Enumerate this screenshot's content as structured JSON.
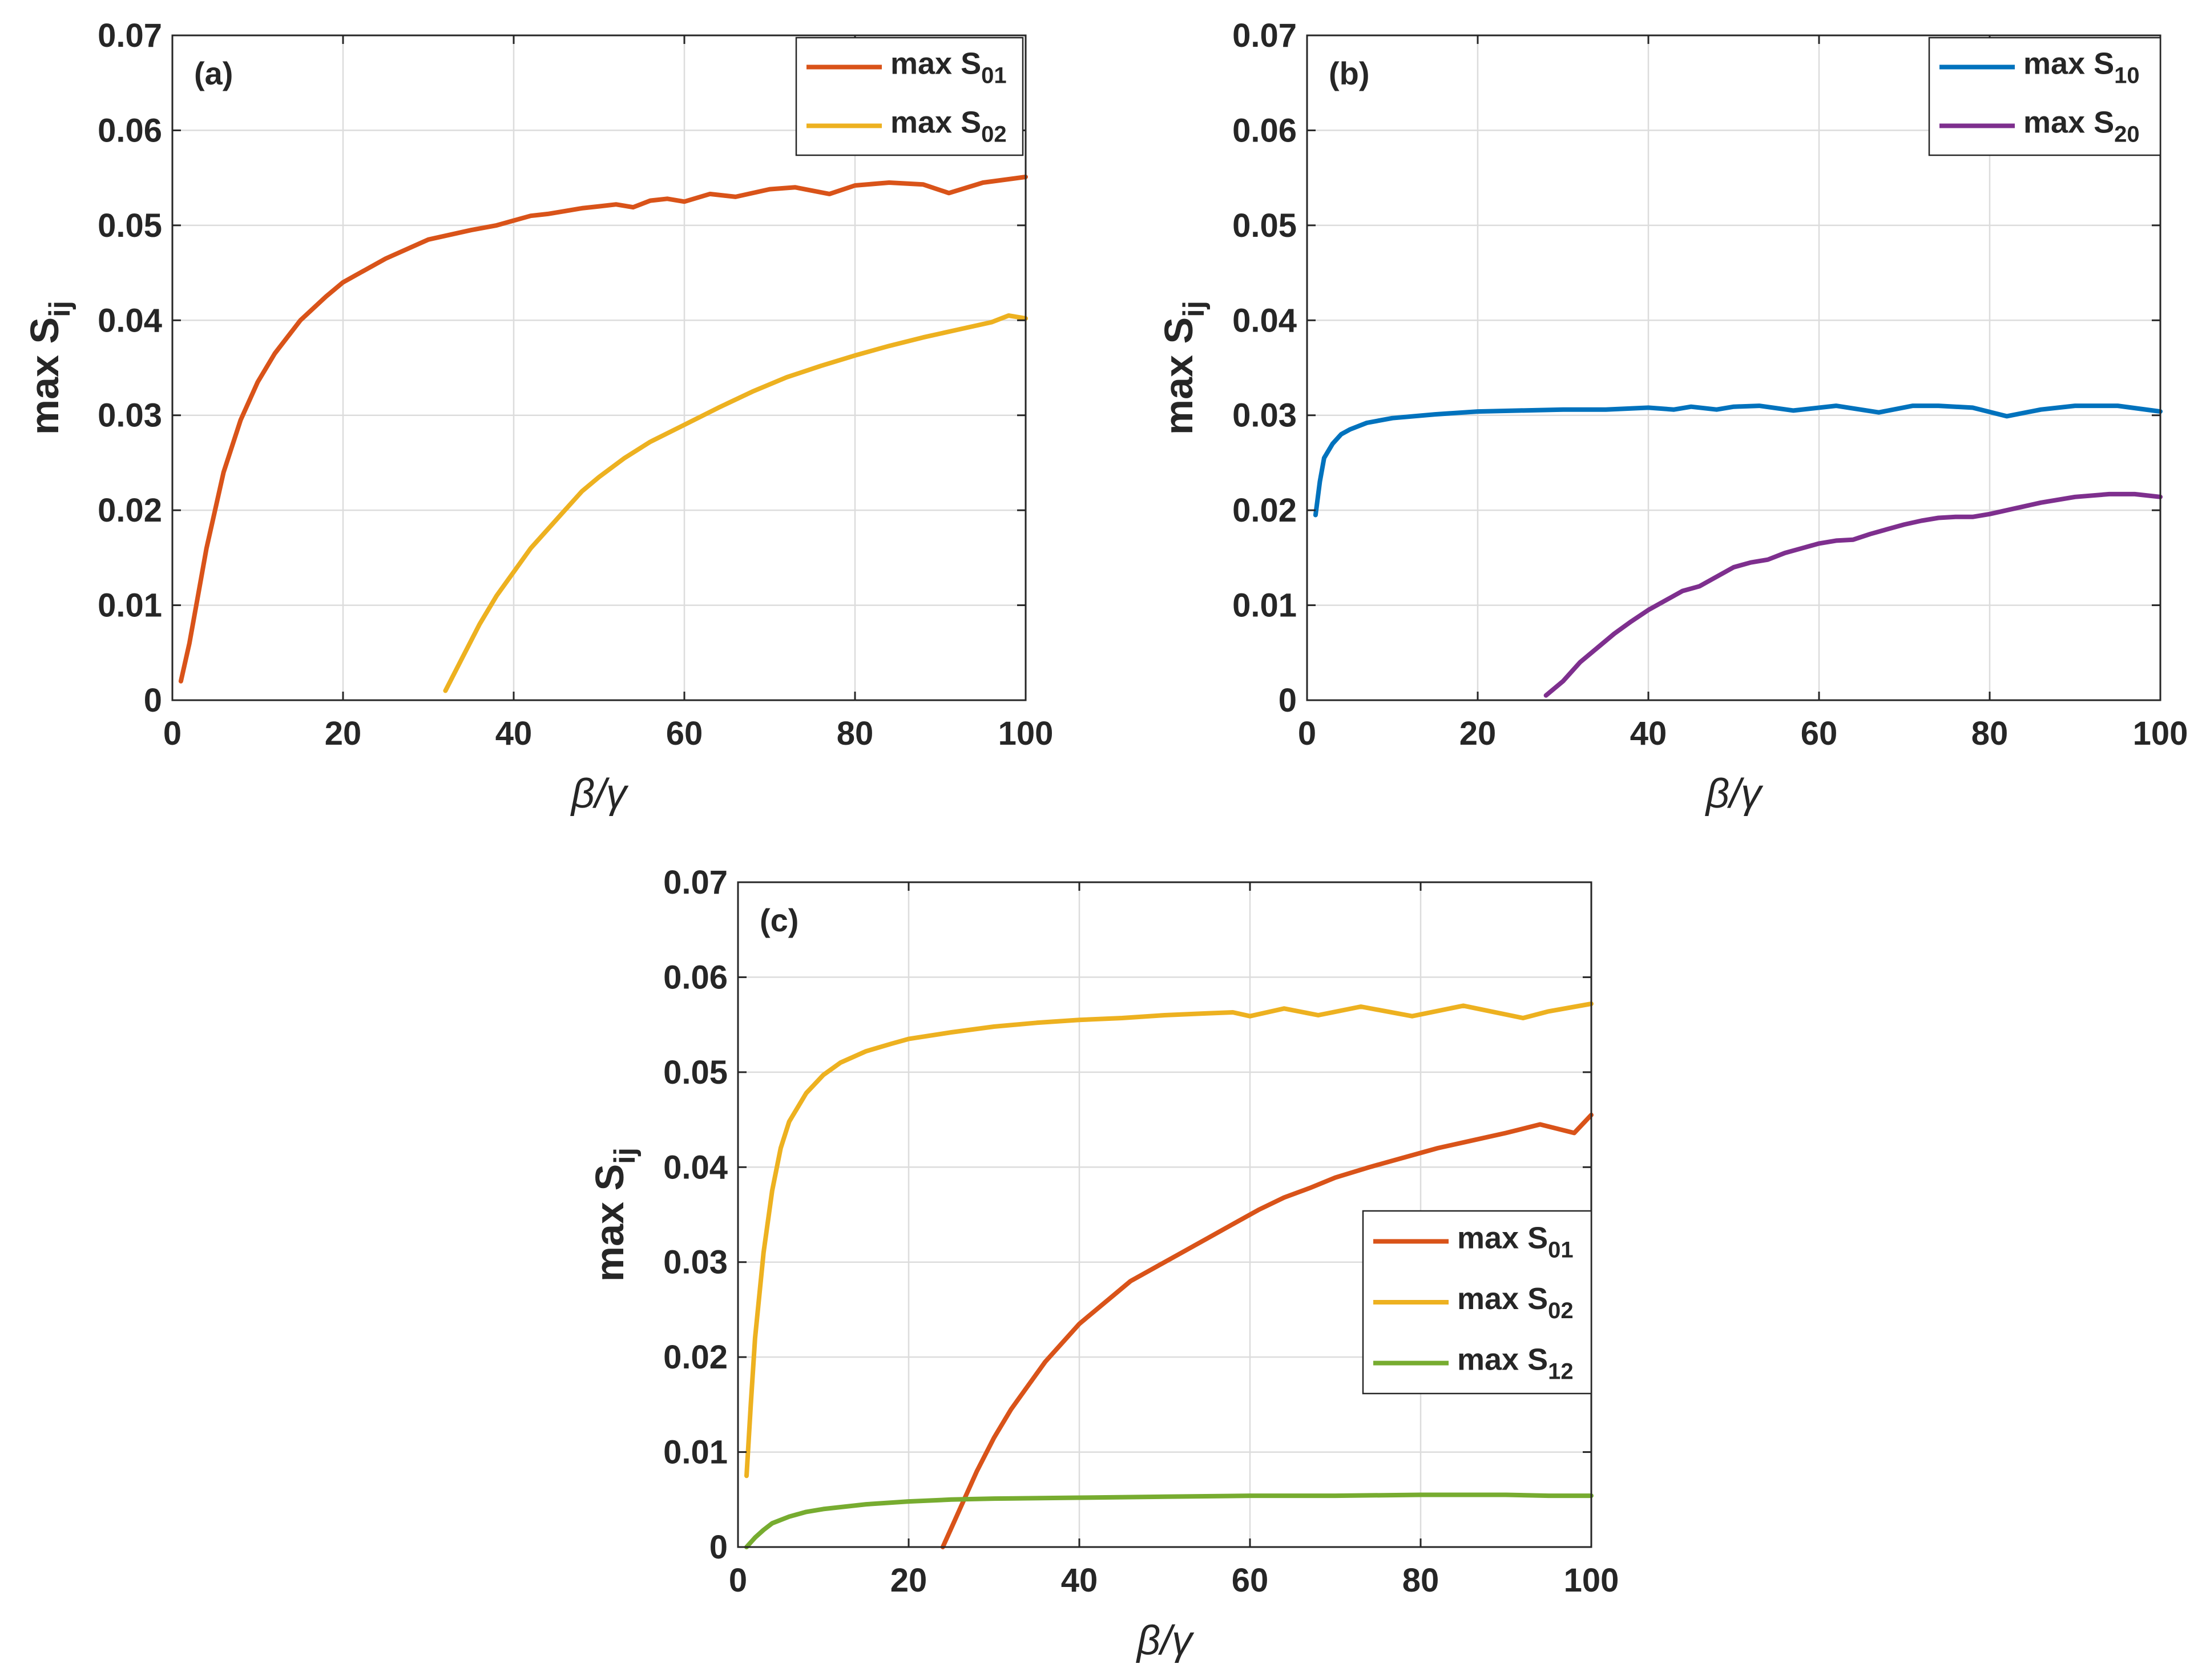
{
  "chart_data": [
    {
      "type": "line",
      "panel_label": "(a)",
      "xlabel": "β/γ",
      "ylabel_main": "max S",
      "ylabel_sub": "ij",
      "xlim": [
        0,
        100
      ],
      "ylim": [
        0,
        0.07
      ],
      "x_ticks": [
        0,
        20,
        40,
        60,
        80,
        100
      ],
      "x_tick_labels": [
        "0",
        "20",
        "40",
        "60",
        "80",
        "100"
      ],
      "y_ticks": [
        0,
        0.01,
        0.02,
        0.03,
        0.04,
        0.05,
        0.06,
        0.07
      ],
      "y_tick_labels": [
        "0",
        "0.01",
        "0.02",
        "0.03",
        "0.04",
        "0.05",
        "0.06",
        "0.07"
      ],
      "grid": true,
      "legend_position": "top-right",
      "series": [
        {
          "name": "max S01",
          "label_main": "max S",
          "label_sub": "01",
          "color": "#D95319",
          "x": [
            1,
            2,
            3,
            4,
            5,
            6,
            8,
            10,
            12,
            15,
            18,
            20,
            25,
            30,
            35,
            38,
            40,
            42,
            44,
            46,
            48,
            50,
            52,
            54,
            56,
            58,
            60,
            63,
            66,
            70,
            73,
            77,
            80,
            84,
            88,
            91,
            95,
            100
          ],
          "y": [
            0.002,
            0.006,
            0.011,
            0.016,
            0.02,
            0.024,
            0.0295,
            0.0335,
            0.0365,
            0.04,
            0.0425,
            0.044,
            0.0465,
            0.0485,
            0.0495,
            0.05,
            0.0505,
            0.051,
            0.0512,
            0.0515,
            0.0518,
            0.052,
            0.0522,
            0.0519,
            0.0526,
            0.0528,
            0.0525,
            0.0533,
            0.053,
            0.0538,
            0.054,
            0.0533,
            0.0542,
            0.0545,
            0.0543,
            0.0534,
            0.0545,
            0.0551
          ]
        },
        {
          "name": "max S02",
          "label_main": "max S",
          "label_sub": "02",
          "color": "#EDB120",
          "x": [
            32,
            34,
            36,
            38,
            40,
            42,
            44,
            46,
            48,
            50,
            53,
            56,
            60,
            64,
            68,
            72,
            76,
            80,
            84,
            88,
            92,
            96,
            98,
            100
          ],
          "y": [
            0.001,
            0.0045,
            0.008,
            0.011,
            0.0135,
            0.016,
            0.018,
            0.02,
            0.022,
            0.0235,
            0.0255,
            0.0272,
            0.029,
            0.0308,
            0.0325,
            0.034,
            0.0352,
            0.0363,
            0.0373,
            0.0382,
            0.039,
            0.0398,
            0.0405,
            0.0402
          ]
        }
      ]
    },
    {
      "type": "line",
      "panel_label": "(b)",
      "xlabel": "β/γ",
      "ylabel_main": "max S",
      "ylabel_sub": "ij",
      "xlim": [
        0,
        100
      ],
      "ylim": [
        0,
        0.07
      ],
      "x_ticks": [
        0,
        20,
        40,
        60,
        80,
        100
      ],
      "x_tick_labels": [
        "0",
        "20",
        "40",
        "60",
        "80",
        "100"
      ],
      "y_ticks": [
        0,
        0.01,
        0.02,
        0.03,
        0.04,
        0.05,
        0.06,
        0.07
      ],
      "y_tick_labels": [
        "0",
        "0.01",
        "0.02",
        "0.03",
        "0.04",
        "0.05",
        "0.06",
        "0.07"
      ],
      "grid": true,
      "legend_position": "top-right",
      "series": [
        {
          "name": "max S10",
          "label_main": "max S",
          "label_sub": "10",
          "color": "#0072BD",
          "x": [
            1,
            1.5,
            2,
            3,
            4,
            5,
            7,
            10,
            15,
            20,
            25,
            30,
            35,
            40,
            43,
            45,
            48,
            50,
            53,
            57,
            62,
            67,
            71,
            74,
            78,
            82,
            86,
            90,
            95,
            100
          ],
          "y": [
            0.0195,
            0.023,
            0.0255,
            0.027,
            0.028,
            0.0285,
            0.0292,
            0.0297,
            0.0301,
            0.0304,
            0.0305,
            0.0306,
            0.0306,
            0.0308,
            0.0306,
            0.0309,
            0.0306,
            0.0309,
            0.031,
            0.0305,
            0.031,
            0.0303,
            0.031,
            0.031,
            0.0308,
            0.0299,
            0.0306,
            0.031,
            0.031,
            0.0304
          ]
        },
        {
          "name": "max S20",
          "label_main": "max S",
          "label_sub": "20",
          "color": "#7E2F8E",
          "x": [
            28,
            30,
            32,
            34,
            36,
            38,
            40,
            42,
            44,
            46,
            48,
            50,
            52,
            54,
            56,
            58,
            60,
            62,
            64,
            66,
            68,
            70,
            72,
            74,
            76,
            78,
            80,
            83,
            86,
            90,
            94,
            97,
            100
          ],
          "y": [
            0.0005,
            0.002,
            0.004,
            0.0055,
            0.007,
            0.0083,
            0.0095,
            0.0105,
            0.0115,
            0.012,
            0.013,
            0.014,
            0.0145,
            0.0148,
            0.0155,
            0.016,
            0.0165,
            0.0168,
            0.0169,
            0.0175,
            0.018,
            0.0185,
            0.0189,
            0.0192,
            0.0193,
            0.0193,
            0.0196,
            0.0202,
            0.0208,
            0.0214,
            0.0217,
            0.0217,
            0.0214
          ]
        }
      ]
    },
    {
      "type": "line",
      "panel_label": "(c)",
      "xlabel": "β/γ",
      "ylabel_main": "max S",
      "ylabel_sub": "ij",
      "xlim": [
        0,
        100
      ],
      "ylim": [
        0,
        0.07
      ],
      "x_ticks": [
        0,
        20,
        40,
        60,
        80,
        100
      ],
      "x_tick_labels": [
        "0",
        "20",
        "40",
        "60",
        "80",
        "100"
      ],
      "y_ticks": [
        0,
        0.01,
        0.02,
        0.03,
        0.04,
        0.05,
        0.06,
        0.07
      ],
      "y_tick_labels": [
        "0",
        "0.01",
        "0.02",
        "0.03",
        "0.04",
        "0.05",
        "0.06",
        "0.07"
      ],
      "grid": true,
      "legend_position": "right",
      "series": [
        {
          "name": "max S01",
          "label_main": "max S",
          "label_sub": "01",
          "color": "#D95319",
          "x": [
            24,
            25,
            26,
            28,
            30,
            32,
            34,
            36,
            38,
            40,
            42,
            44,
            46,
            48,
            50,
            52,
            55,
            58,
            61,
            64,
            67,
            70,
            74,
            78,
            82,
            86,
            90,
            94,
            98,
            100
          ],
          "y": [
            0.0,
            0.002,
            0.004,
            0.008,
            0.0115,
            0.0145,
            0.017,
            0.0195,
            0.0215,
            0.0235,
            0.025,
            0.0265,
            0.028,
            0.029,
            0.03,
            0.031,
            0.0325,
            0.034,
            0.0355,
            0.0368,
            0.0378,
            0.0389,
            0.04,
            0.041,
            0.042,
            0.0428,
            0.0436,
            0.0445,
            0.0436,
            0.0455
          ]
        },
        {
          "name": "max S02",
          "label_main": "max S",
          "label_sub": "02",
          "color": "#EDB120",
          "x": [
            1,
            1.5,
            2,
            3,
            4,
            5,
            6,
            8,
            10,
            12,
            15,
            18,
            20,
            25,
            30,
            35,
            40,
            45,
            50,
            55,
            58,
            60,
            64,
            68,
            73,
            79,
            85,
            92,
            95,
            100
          ],
          "y": [
            0.0075,
            0.015,
            0.022,
            0.031,
            0.0375,
            0.042,
            0.0448,
            0.0478,
            0.0497,
            0.051,
            0.0522,
            0.053,
            0.0535,
            0.0542,
            0.0548,
            0.0552,
            0.0555,
            0.0557,
            0.056,
            0.0562,
            0.0563,
            0.0559,
            0.0567,
            0.056,
            0.0569,
            0.0559,
            0.057,
            0.0557,
            0.0564,
            0.0572
          ]
        },
        {
          "name": "max S12",
          "label_main": "max S",
          "label_sub": "12",
          "color": "#77AC30",
          "x": [
            1,
            2,
            3,
            4,
            6,
            8,
            10,
            15,
            20,
            25,
            30,
            40,
            50,
            60,
            70,
            80,
            90,
            95,
            100
          ],
          "y": [
            0.0,
            0.001,
            0.0018,
            0.0025,
            0.0032,
            0.0037,
            0.004,
            0.0045,
            0.0048,
            0.005,
            0.0051,
            0.0052,
            0.0053,
            0.0054,
            0.0054,
            0.0055,
            0.0055,
            0.0054,
            0.0054
          ]
        }
      ]
    }
  ]
}
